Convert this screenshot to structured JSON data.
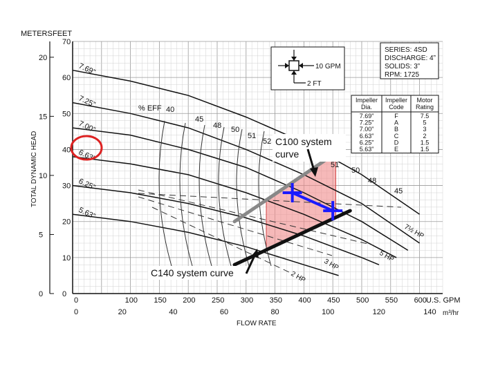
{
  "chart_data": {
    "type": "line",
    "title": "",
    "xlabel": "FLOW RATE",
    "ylabel": "TOTAL DYNAMIC HEAD",
    "y_units": [
      "METERS",
      "FEET"
    ],
    "x_units": [
      "U.S. GPM",
      "m³/hr"
    ],
    "xlim": [
      0,
      640
    ],
    "ylim": [
      0,
      70
    ],
    "grid": true,
    "x_ticks_gpm": [
      "0",
      "100",
      "150",
      "200",
      "250",
      "300",
      "350",
      "400",
      "450",
      "500",
      "550",
      "600"
    ],
    "x_ticks_m3": [
      "0",
      "20",
      "40",
      "60",
      "80",
      "100",
      "120",
      "140"
    ],
    "y_ticks_feet": [
      "0",
      "10",
      "20",
      "30",
      "40",
      "50",
      "60",
      "70"
    ],
    "y_ticks_meters": [
      "0",
      "5",
      "10",
      "15",
      "20"
    ],
    "spec": {
      "series": "SERIES: 4SD",
      "discharge": "DISCHARGE: 4”",
      "solids": "SOLIDS: 3”",
      "rpm": "RPM: 1725"
    },
    "scale_key": {
      "flow": "10 GPM",
      "head": "2 FT"
    },
    "impeller_table": {
      "headers": [
        "Impeller Dia.",
        "Impeller Code",
        "Motor Rating"
      ],
      "rows": [
        [
          "7.69”",
          "F",
          "7.5"
        ],
        [
          "7.25”",
          "A",
          "5"
        ],
        [
          "7.00”",
          "B",
          "3"
        ],
        [
          "6.63”",
          "C",
          "2"
        ],
        [
          "6.25”",
          "D",
          "1.5"
        ],
        [
          "5.63”",
          "E",
          "1.5"
        ]
      ]
    },
    "series": [
      {
        "name": "7.69”",
        "x": [
          0,
          100,
          200,
          300,
          400,
          500,
          600
        ],
        "y": [
          62,
          59,
          55,
          49,
          42,
          33,
          22
        ]
      },
      {
        "name": "7.25”",
        "x": [
          0,
          100,
          200,
          300,
          400,
          500,
          600
        ],
        "y": [
          53,
          50,
          46,
          40,
          33,
          25,
          14
        ]
      },
      {
        "name": "7.00”",
        "x": [
          0,
          100,
          200,
          300,
          400,
          500,
          580
        ],
        "y": [
          46,
          44,
          40,
          35,
          28,
          20,
          12
        ]
      },
      {
        "name": "6.63”",
        "x": [
          0,
          100,
          200,
          300,
          400,
          500,
          560
        ],
        "y": [
          38,
          36,
          33,
          28,
          22,
          15,
          10
        ]
      },
      {
        "name": "6.25”",
        "x": [
          0,
          100,
          200,
          300,
          400,
          500,
          530
        ],
        "y": [
          30,
          28,
          25,
          21,
          16,
          10,
          8
        ]
      },
      {
        "name": "5.63”",
        "x": [
          0,
          100,
          200,
          300,
          400,
          460
        ],
        "y": [
          22,
          20,
          17,
          13,
          8,
          5
        ]
      }
    ],
    "efficiency_labels": [
      "% EFF",
      "40",
      "45",
      "48",
      "50",
      "51",
      "52",
      "51",
      "50",
      "48",
      "45"
    ],
    "hp_labels": [
      "7½ HP",
      "5 HP",
      "3 HP",
      "2 HP"
    ],
    "system_curves": [
      {
        "name": "C100 system curve",
        "color": "#888888",
        "x": [
          280,
          455
        ],
        "y": [
          20,
          39
        ]
      },
      {
        "name": "C140 system curve",
        "color": "#111111",
        "x": [
          280,
          480
        ],
        "y": [
          8,
          23
        ]
      }
    ],
    "operating_points": [
      {
        "x": 380,
        "y": 28
      },
      {
        "x": 450,
        "y": 23
      }
    ],
    "operating_region": {
      "color": "#f08a8a"
    },
    "highlight_color": "#dd2222",
    "operating_line_color": "#1a1aff"
  }
}
